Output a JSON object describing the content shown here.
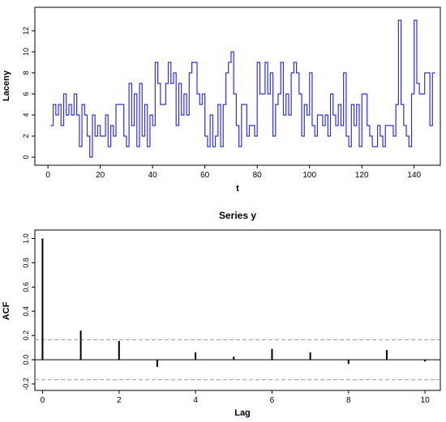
{
  "chart_data": [
    {
      "type": "line",
      "step": true,
      "xlabel": "t",
      "ylabel": "Laceny",
      "xlim": [
        -5,
        150
      ],
      "ylim": [
        0,
        13
      ],
      "x_ticks": [
        0,
        20,
        40,
        60,
        80,
        100,
        120,
        140
      ],
      "y_ticks": [
        0,
        2,
        4,
        6,
        8,
        10,
        12
      ],
      "x_tick_labels": [
        "0",
        "20",
        "40",
        "60",
        "80",
        "100",
        "120",
        "140"
      ],
      "y_tick_labels": [
        "0",
        "2",
        "4",
        "6",
        "8",
        "10",
        "12"
      ],
      "grid": false,
      "series": [
        {
          "color": "#3333cc",
          "values": [
            3,
            5,
            4,
            5,
            3,
            6,
            4,
            5,
            4,
            6,
            4,
            1,
            5,
            4,
            2,
            0,
            4,
            2,
            3,
            2,
            2,
            4,
            1,
            3,
            2,
            5,
            5,
            5,
            2,
            1,
            7,
            3,
            6,
            1,
            7,
            2,
            5,
            1,
            4,
            3,
            9,
            7,
            5,
            5,
            7,
            9,
            7,
            8,
            3,
            7,
            4,
            6,
            4,
            8,
            9,
            9,
            6,
            5,
            6,
            2,
            1,
            4,
            1,
            2,
            5,
            1,
            5,
            8,
            9,
            10,
            6,
            3,
            1,
            5,
            5,
            2,
            3,
            3,
            2,
            9,
            6,
            6,
            9,
            6,
            8,
            2,
            5,
            6,
            9,
            4,
            6,
            4,
            8,
            9,
            8,
            6,
            2,
            5,
            4,
            8,
            3,
            2,
            4,
            4,
            3,
            4,
            2,
            6,
            4,
            3,
            5,
            3,
            8,
            2,
            1,
            5,
            3,
            5,
            1,
            6,
            6,
            3,
            2,
            1,
            1,
            3,
            2,
            1,
            3,
            3,
            3,
            2,
            5,
            13,
            5,
            3,
            2,
            1,
            6,
            13,
            7,
            6,
            6,
            8,
            8,
            3,
            8
          ]
        }
      ]
    },
    {
      "type": "bar",
      "title": "Series  y",
      "xlabel": "Lag",
      "ylabel": "ACF",
      "xlim": [
        -0.2,
        10.4
      ],
      "ylim": [
        -0.2,
        1.05
      ],
      "x_ticks": [
        0,
        2,
        4,
        6,
        8,
        10
      ],
      "y_ticks": [
        -0.2,
        0.0,
        0.2,
        0.4,
        0.6,
        0.8,
        1.0
      ],
      "x_tick_labels": [
        "0",
        "2",
        "4",
        "6",
        "8",
        "10"
      ],
      "y_tick_labels": [
        "-0.2",
        "0.0",
        "0.2",
        "0.4",
        "0.6",
        "0.8",
        "1.0"
      ],
      "grid": false,
      "lags": [
        0,
        1,
        2,
        3,
        4,
        5,
        6,
        7,
        8,
        9,
        10
      ],
      "values": [
        1.0,
        0.24,
        0.155,
        -0.06,
        0.06,
        0.025,
        0.09,
        0.06,
        -0.035,
        0.08,
        -0.015
      ],
      "conf_band": [
        -0.165,
        0.165
      ]
    }
  ]
}
